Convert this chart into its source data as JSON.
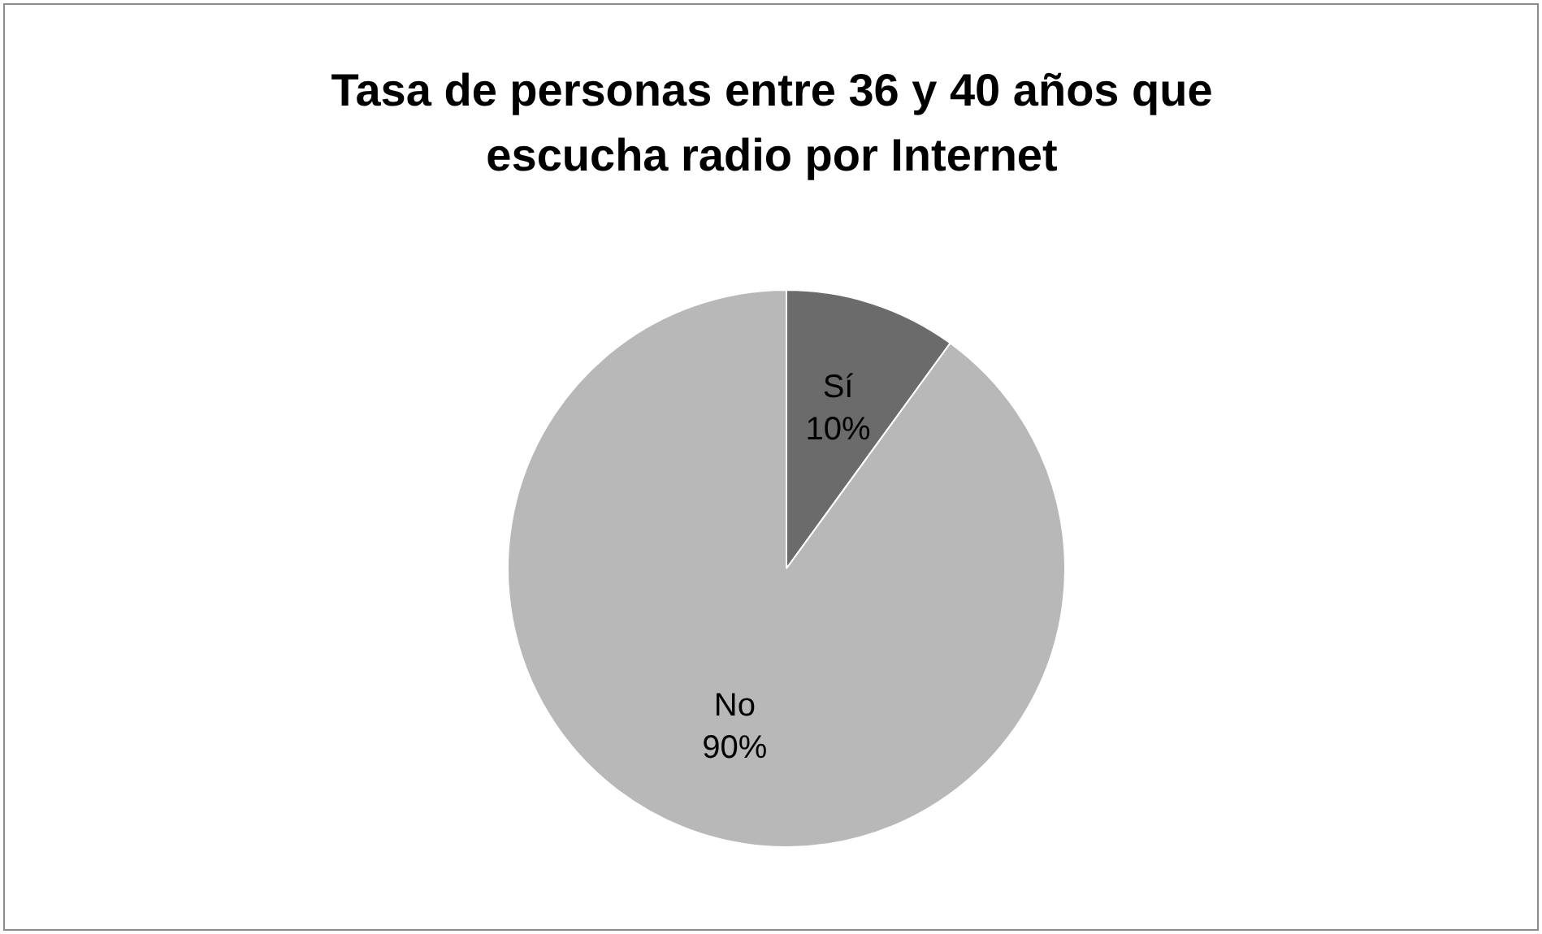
{
  "chart_data": {
    "type": "pie",
    "title": "Tasa de personas entre 36 y 40 años que escucha radio por Internet",
    "categories": [
      "Sí",
      "No"
    ],
    "values": [
      10,
      90
    ],
    "value_labels": [
      "10%",
      "90%"
    ],
    "colors": [
      "#6b6b6b",
      "#b8b8b8"
    ],
    "legend": false
  }
}
